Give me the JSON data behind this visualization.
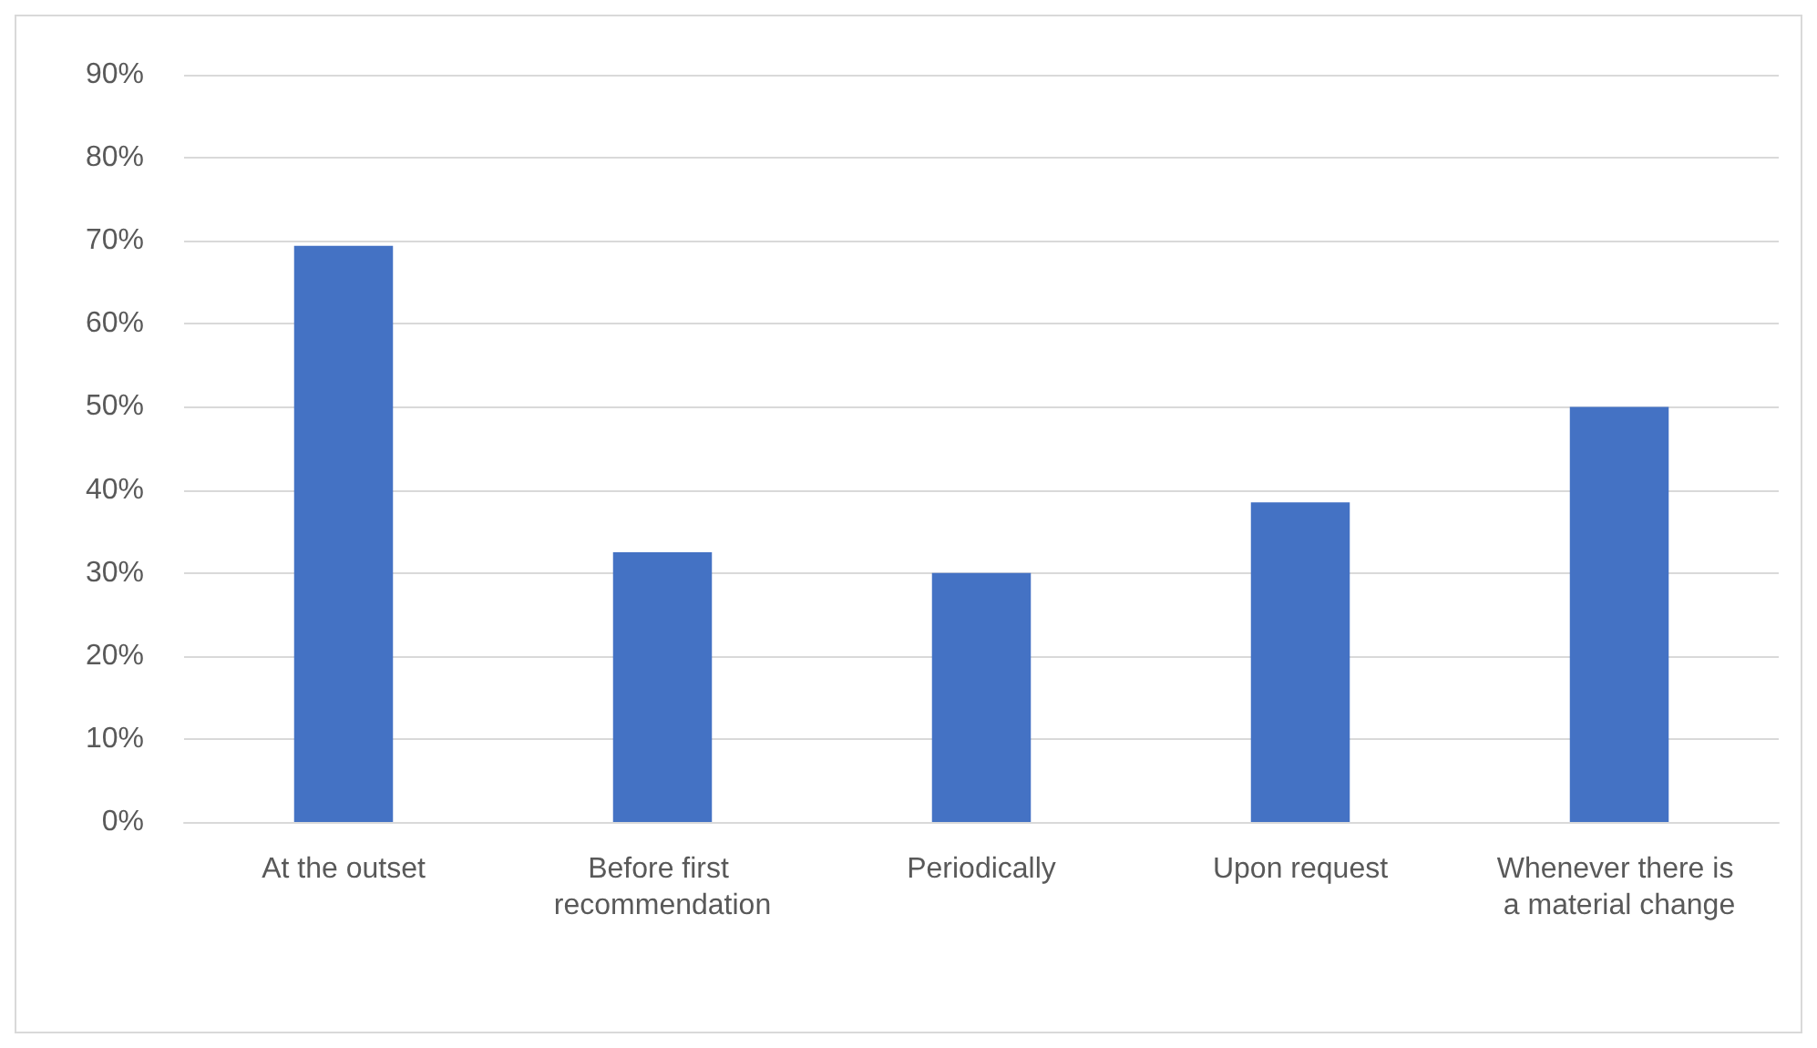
{
  "chart_data": {
    "type": "bar",
    "categories": [
      "At the outset",
      "Before first recommendation",
      "Periodically",
      "Upon request",
      "Whenever there is a material change"
    ],
    "values": [
      69.4,
      32.5,
      30,
      38.5,
      50
    ],
    "color": "#4472c4",
    "ylim": [
      0,
      90
    ],
    "yticks": [
      {
        "value": 0,
        "label": "0%"
      },
      {
        "value": 10,
        "label": "10%"
      },
      {
        "value": 20,
        "label": "20%"
      },
      {
        "value": 30,
        "label": "30%"
      },
      {
        "value": 40,
        "label": "40%"
      },
      {
        "value": 50,
        "label": "50%"
      },
      {
        "value": 60,
        "label": "60%"
      },
      {
        "value": 70,
        "label": "70%"
      },
      {
        "value": 80,
        "label": "80%"
      },
      {
        "value": 90,
        "label": "90%"
      }
    ],
    "grid": true
  }
}
